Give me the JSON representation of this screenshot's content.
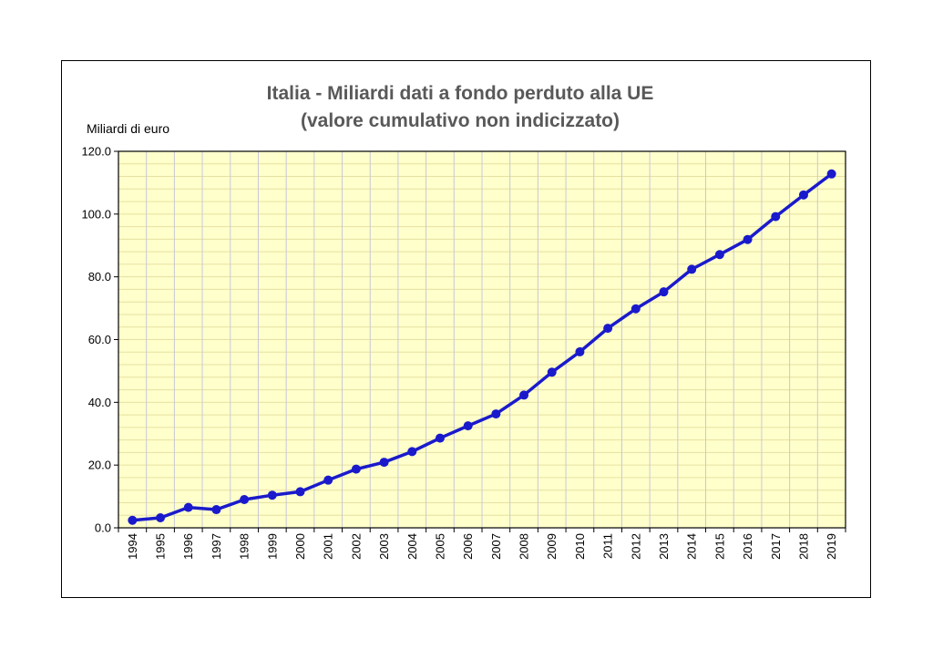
{
  "chart_data": {
    "type": "line",
    "title": "Italia - Miliardi dati a fondo perduto alla UE",
    "subtitle": "(valore cumulativo non indicizzato)",
    "ylabel": "Miliardi di euro",
    "xlabel": "",
    "ylim": [
      0,
      120
    ],
    "yticks": [
      "0.0",
      "20.0",
      "40.0",
      "60.0",
      "80.0",
      "100.0",
      "120.0"
    ],
    "grid": true,
    "categories": [
      "1994",
      "1995",
      "1996",
      "1997",
      "1998",
      "1999",
      "2000",
      "2001",
      "2002",
      "2003",
      "2004",
      "2005",
      "2006",
      "2007",
      "2008",
      "2009",
      "2010",
      "2011",
      "2012",
      "2013",
      "2014",
      "2015",
      "2016",
      "2017",
      "2018",
      "2019"
    ],
    "series": [
      {
        "values": [
          2.4,
          3.2,
          6.5,
          5.8,
          9.0,
          10.4,
          11.5,
          15.2,
          18.7,
          20.9,
          24.3,
          28.6,
          32.5,
          36.3,
          42.3,
          49.6,
          56.1,
          63.6,
          69.8,
          75.2,
          82.4,
          87.1,
          91.9,
          99.2,
          106.1,
          112.8
        ],
        "color": "#1a1acc"
      }
    ],
    "plot_background": "#ffffcc"
  }
}
